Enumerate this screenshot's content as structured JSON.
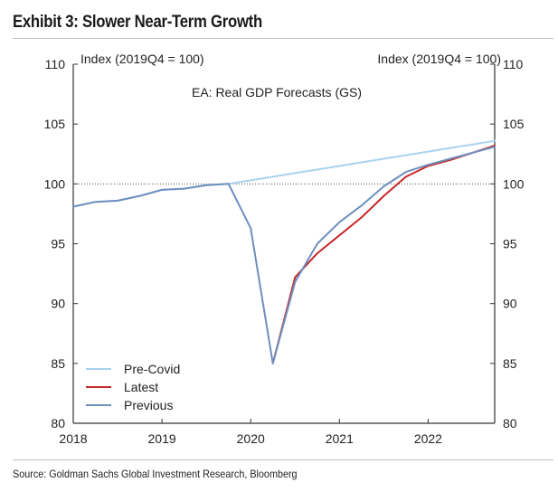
{
  "exhibit_title": "Exhibit 3: Slower Near-Term Growth",
  "source": "Source: Goldman Sachs Global Investment Research, Bloomberg",
  "chart_data": {
    "type": "line",
    "title": "EA: Real GDP Forecasts (GS)",
    "ylabel_left": "Index (2019Q4 = 100)",
    "ylabel_right": "Index (2019Q4 = 100)",
    "xlabel": "",
    "xlim": [
      2018.0,
      2022.75
    ],
    "ylim": [
      80,
      110
    ],
    "x_ticks": [
      2018,
      2019,
      2020,
      2021,
      2022
    ],
    "x_tick_labels": [
      "2018",
      "2019",
      "2020",
      "2021",
      "2022"
    ],
    "y_ticks": [
      80,
      85,
      90,
      95,
      100,
      105,
      110
    ],
    "y_tick_labels": [
      "80",
      "85",
      "90",
      "95",
      "100",
      "105",
      "110"
    ],
    "reference_line": {
      "y": 100,
      "style": "dotted"
    },
    "legend_position": "bottom-left",
    "grid": false,
    "series": [
      {
        "name": "Pre-Covid",
        "color": "#a9d3ee",
        "x": [
          "2018Q1",
          "2018Q2",
          "2018Q3",
          "2018Q4",
          "2019Q1",
          "2019Q2",
          "2019Q3",
          "2019Q4",
          "2020Q1",
          "2020Q2",
          "2020Q3",
          "2020Q4",
          "2021Q1",
          "2021Q2",
          "2021Q3",
          "2021Q4",
          "2022Q1",
          "2022Q2",
          "2022Q3",
          "2022Q4"
        ],
        "values": [
          98.1,
          98.5,
          98.6,
          99.0,
          99.5,
          99.6,
          99.9,
          100.0,
          100.3,
          100.6,
          100.9,
          101.2,
          101.5,
          101.8,
          102.1,
          102.4,
          102.7,
          103.0,
          103.3,
          103.6
        ]
      },
      {
        "name": "Latest",
        "color": "#c62828",
        "x": [
          "2020Q2",
          "2020Q3",
          "2020Q4",
          "2021Q1",
          "2021Q2",
          "2021Q3",
          "2021Q4",
          "2022Q1",
          "2022Q2",
          "2022Q3",
          "2022Q4"
        ],
        "values": [
          85.0,
          92.2,
          94.2,
          95.7,
          97.2,
          99.0,
          100.6,
          101.5,
          102.0,
          102.6,
          103.2
        ]
      },
      {
        "name": "Previous",
        "color": "#6d8fbf",
        "x": [
          "2018Q1",
          "2018Q2",
          "2018Q3",
          "2018Q4",
          "2019Q1",
          "2019Q2",
          "2019Q3",
          "2019Q4",
          "2020Q1",
          "2020Q2",
          "2020Q3",
          "2020Q4",
          "2021Q1",
          "2021Q2",
          "2021Q3",
          "2021Q4",
          "2022Q1",
          "2022Q2",
          "2022Q3",
          "2022Q4"
        ],
        "values": [
          98.1,
          98.5,
          98.6,
          99.0,
          99.5,
          99.6,
          99.9,
          100.0,
          96.3,
          85.0,
          91.8,
          95.0,
          96.8,
          98.2,
          99.8,
          101.0,
          101.6,
          102.1,
          102.6,
          103.1
        ]
      }
    ]
  }
}
